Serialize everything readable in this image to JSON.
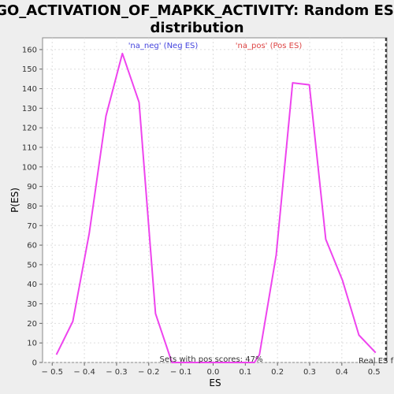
{
  "chart_data": {
    "type": "line",
    "title_line1": "GO_ACTIVATION_OF_MAPKK_ACTIVITY: Random ES",
    "title_line2": "distribution",
    "xlabel": "ES",
    "ylabel": "P(ES)",
    "xlim": [
      -0.53,
      0.54
    ],
    "ylim": [
      0,
      166
    ],
    "x_ticks": [
      -0.5,
      -0.4,
      -0.3,
      -0.2,
      -0.1,
      0.0,
      0.1,
      0.2,
      0.3,
      0.4,
      0.5
    ],
    "y_ticks": [
      0,
      10,
      20,
      30,
      40,
      50,
      60,
      70,
      80,
      90,
      100,
      110,
      120,
      130,
      140,
      150,
      160
    ],
    "grid": true,
    "series": [
      {
        "color": "#ee44ee",
        "points": [
          [
            -0.487,
            4
          ],
          [
            -0.436,
            21
          ],
          [
            -0.385,
            66
          ],
          [
            -0.333,
            126
          ],
          [
            -0.282,
            158
          ],
          [
            -0.23,
            133
          ],
          [
            -0.179,
            25
          ],
          [
            -0.128,
            0
          ],
          [
            0.128,
            0
          ],
          [
            0.144,
            4
          ],
          [
            0.196,
            55
          ],
          [
            0.247,
            143
          ],
          [
            0.299,
            142
          ],
          [
            0.35,
            63
          ],
          [
            0.402,
            42
          ],
          [
            0.453,
            14
          ],
          [
            0.505,
            5
          ]
        ]
      }
    ],
    "legend": [
      {
        "label": "'na_neg' (Neg ES)",
        "color": "#4444dd"
      },
      {
        "label": "'na_pos' (Pos ES)",
        "color": "#dd4444"
      }
    ],
    "annotations": {
      "pos_scores": "Sets with pos scores: 47%",
      "real_es_label": "Real ES f",
      "real_es_value": 0.537
    }
  }
}
